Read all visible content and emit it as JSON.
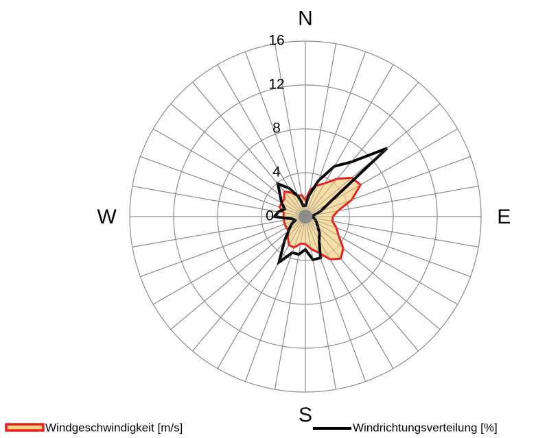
{
  "chart_data": {
    "type": "radar",
    "categories": [
      "N",
      null,
      null,
      null,
      null,
      null,
      null,
      null,
      null,
      "E",
      null,
      null,
      null,
      null,
      null,
      null,
      null,
      null,
      "S",
      null,
      null,
      null,
      null,
      null,
      null,
      null,
      null,
      "W",
      null,
      null,
      null,
      null,
      null,
      null,
      null,
      null
    ],
    "series": [
      {
        "name": "Windgeschwindigkeit [m/s]",
        "color": "#e8201a",
        "fill": "#f5d48a",
        "values": [
          1.5,
          2.5,
          3,
          3.5,
          4.5,
          5.5,
          5.8,
          4.5,
          3,
          2.5,
          2.5,
          3,
          3.5,
          4.5,
          5,
          4.5,
          3.5,
          3,
          2.5,
          2.5,
          3,
          3,
          2.5,
          2,
          2,
          2,
          2,
          2,
          2,
          2.5,
          2.5,
          2.5,
          3,
          2.5,
          2,
          2
        ]
      },
      {
        "name": "Windrichtungsverteilung [%]",
        "color": "#000000",
        "values": [
          1,
          2,
          3.5,
          5.3,
          6.5,
          9.7,
          2.5,
          1.5,
          0.8,
          0.5,
          0.8,
          1,
          1.2,
          1.5,
          2,
          2.5,
          4,
          4,
          3,
          3.5,
          3.5,
          4.8,
          3,
          2,
          1.5,
          1,
          1.2,
          2.8,
          2.5,
          2,
          2.5,
          3,
          3.9,
          3,
          2,
          1
        ]
      }
    ],
    "ylim": [
      0,
      16
    ],
    "yticks": [
      0,
      4,
      8,
      12,
      16
    ],
    "grid": true
  }
}
